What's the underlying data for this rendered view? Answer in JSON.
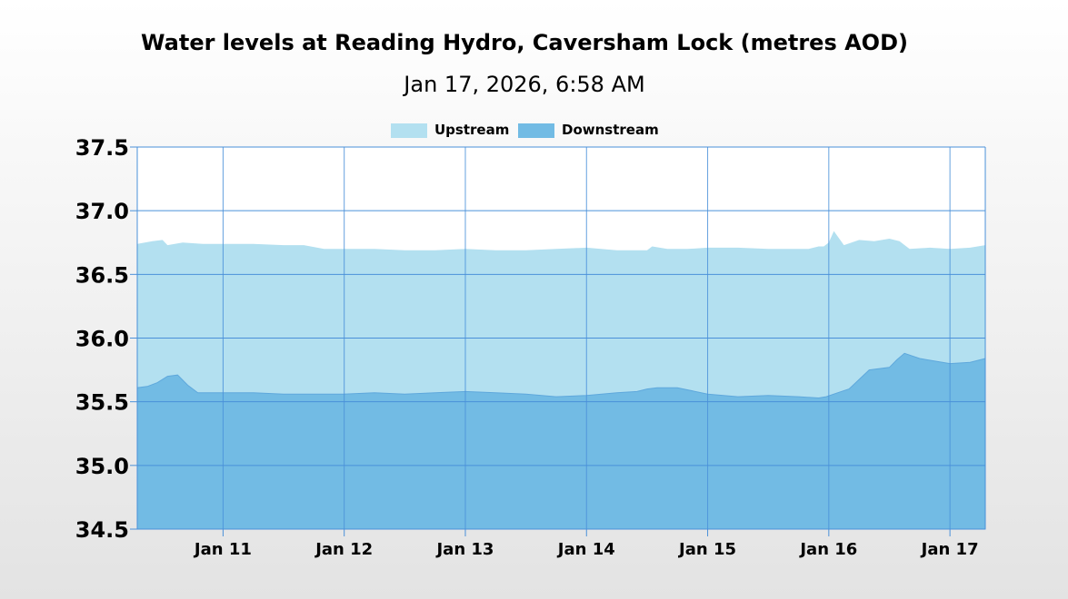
{
  "chart_data": {
    "type": "area",
    "title": "Water levels at Reading Hydro, Caversham Lock (metres AOD)",
    "subtitle": "Jan 17, 2026, 6:58 AM",
    "xlabel": "",
    "ylabel": "",
    "ylim": [
      34.5,
      37.5
    ],
    "yticks": [
      34.5,
      35.0,
      35.5,
      36.0,
      36.5,
      37.0,
      37.5
    ],
    "ytick_labels": [
      "34.5",
      "35.0",
      "35.5",
      "36.0",
      "36.5",
      "37.0",
      "37.5"
    ],
    "xlim": [
      "2026-01-10T07:00",
      "2026-01-17T07:00"
    ],
    "xticks": [
      "2026-01-11",
      "2026-01-12",
      "2026-01-13",
      "2026-01-14",
      "2026-01-15",
      "2026-01-16",
      "2026-01-17"
    ],
    "xtick_labels": [
      "Jan 11",
      "Jan 12",
      "Jan 13",
      "Jan 14",
      "Jan 15",
      "Jan 16",
      "Jan 17"
    ],
    "grid": true,
    "legend_position": "top-center",
    "series": [
      {
        "name": "Upstream",
        "color": "#b3e0f0",
        "x": [
          "2026-01-10T07:00",
          "2026-01-10T10:00",
          "2026-01-10T12:00",
          "2026-01-10T13:00",
          "2026-01-10T16:00",
          "2026-01-10T20:00",
          "2026-01-11T00:00",
          "2026-01-11T06:00",
          "2026-01-11T12:00",
          "2026-01-11T16:00",
          "2026-01-11T20:00",
          "2026-01-12T00:00",
          "2026-01-12T06:00",
          "2026-01-12T12:00",
          "2026-01-12T18:00",
          "2026-01-13T00:00",
          "2026-01-13T06:00",
          "2026-01-13T12:00",
          "2026-01-13T18:00",
          "2026-01-14T00:00",
          "2026-01-14T06:00",
          "2026-01-14T10:00",
          "2026-01-14T12:00",
          "2026-01-14T13:00",
          "2026-01-14T16:00",
          "2026-01-14T20:00",
          "2026-01-15T00:00",
          "2026-01-15T06:00",
          "2026-01-15T12:00",
          "2026-01-15T16:00",
          "2026-01-15T20:00",
          "2026-01-15T22:00",
          "2026-01-15T23:00",
          "2026-01-16T00:00",
          "2026-01-16T01:00",
          "2026-01-16T03:00",
          "2026-01-16T06:00",
          "2026-01-16T09:00",
          "2026-01-16T12:00",
          "2026-01-16T14:00",
          "2026-01-16T16:00",
          "2026-01-16T20:00",
          "2026-01-17T00:00",
          "2026-01-17T04:00",
          "2026-01-17T07:00"
        ],
        "values": [
          36.74,
          36.76,
          36.77,
          36.73,
          36.75,
          36.74,
          36.74,
          36.74,
          36.73,
          36.73,
          36.7,
          36.7,
          36.7,
          36.69,
          36.69,
          36.7,
          36.69,
          36.69,
          36.7,
          36.71,
          36.69,
          36.69,
          36.69,
          36.72,
          36.7,
          36.7,
          36.71,
          36.71,
          36.7,
          36.7,
          36.7,
          36.72,
          36.72,
          36.75,
          36.84,
          36.73,
          36.77,
          36.76,
          36.78,
          36.76,
          36.7,
          36.71,
          36.7,
          36.71,
          36.73
        ]
      },
      {
        "name": "Downstream",
        "color": "#72bbe4",
        "x": [
          "2026-01-10T07:00",
          "2026-01-10T09:00",
          "2026-01-10T11:00",
          "2026-01-10T13:00",
          "2026-01-10T15:00",
          "2026-01-10T17:00",
          "2026-01-10T19:00",
          "2026-01-10T23:00",
          "2026-01-11T06:00",
          "2026-01-11T12:00",
          "2026-01-11T18:00",
          "2026-01-12T00:00",
          "2026-01-12T06:00",
          "2026-01-12T12:00",
          "2026-01-12T18:00",
          "2026-01-13T00:00",
          "2026-01-13T06:00",
          "2026-01-13T12:00",
          "2026-01-13T18:00",
          "2026-01-14T00:00",
          "2026-01-14T06:00",
          "2026-01-14T10:00",
          "2026-01-14T12:00",
          "2026-01-14T14:00",
          "2026-01-14T18:00",
          "2026-01-15T00:00",
          "2026-01-15T06:00",
          "2026-01-15T12:00",
          "2026-01-15T18:00",
          "2026-01-15T22:00",
          "2026-01-15T23:30",
          "2026-01-16T01:00",
          "2026-01-16T04:00",
          "2026-01-16T08:00",
          "2026-01-16T12:00",
          "2026-01-16T13:30",
          "2026-01-16T15:00",
          "2026-01-16T18:00",
          "2026-01-17T00:00",
          "2026-01-17T04:00",
          "2026-01-17T07:00"
        ],
        "values": [
          35.61,
          35.62,
          35.65,
          35.7,
          35.71,
          35.63,
          35.57,
          35.57,
          35.57,
          35.56,
          35.56,
          35.56,
          35.57,
          35.56,
          35.57,
          35.58,
          35.57,
          35.56,
          35.54,
          35.55,
          35.57,
          35.58,
          35.6,
          35.61,
          35.61,
          35.56,
          35.54,
          35.55,
          35.54,
          35.53,
          35.54,
          35.56,
          35.6,
          35.75,
          35.77,
          35.83,
          35.88,
          35.84,
          35.8,
          35.81,
          35.84
        ]
      }
    ]
  }
}
